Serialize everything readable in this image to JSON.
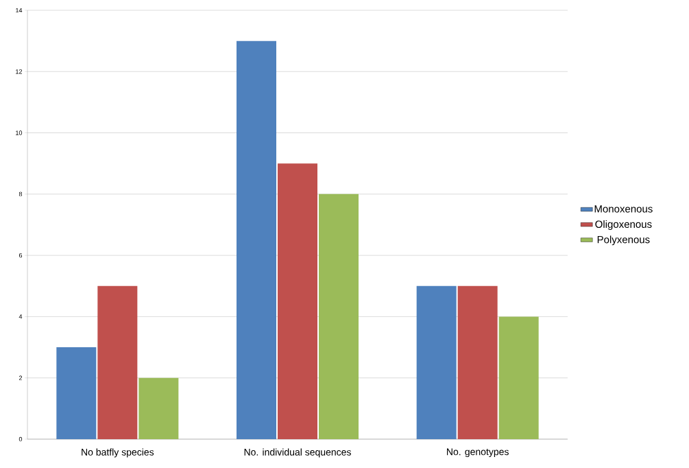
{
  "chart_data": {
    "type": "bar",
    "categories": [
      "No batfly species",
      "No. individual sequences",
      "No. genotypes"
    ],
    "series": [
      {
        "name": "Monoxenous",
        "color": "#4f81bd",
        "values": [
          3,
          13,
          5
        ]
      },
      {
        "name": "Oligoxenous",
        "color": "#c0504d",
        "values": [
          5,
          9,
          5
        ]
      },
      {
        "name": "Polyxenous",
        "color": "#9bbb59",
        "values": [
          2,
          8,
          4
        ]
      }
    ],
    "ylim": [
      0,
      14
    ],
    "yticks": [
      0,
      2,
      4,
      6,
      8,
      10,
      12,
      14
    ],
    "grid": "y",
    "legend": "right"
  }
}
